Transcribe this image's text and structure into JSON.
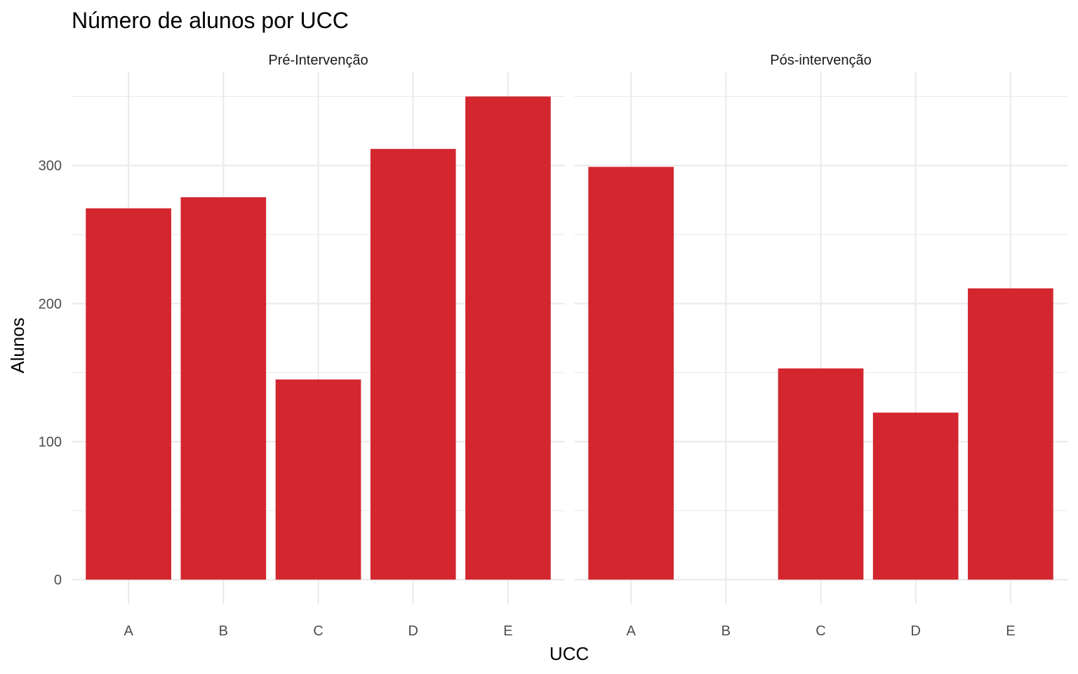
{
  "chart_data": {
    "type": "bar",
    "title": "Número de alunos por UCC",
    "xlabel": "UCC",
    "ylabel": "Alunos",
    "categories": [
      "A",
      "B",
      "C",
      "D",
      "E"
    ],
    "ylim": [
      0,
      350
    ],
    "y_ticks": [
      0,
      100,
      200,
      300
    ],
    "grid": true,
    "legend": "none",
    "bar_color": "#d3262f",
    "panels": [
      {
        "name": "Pré-Intervenção",
        "values": [
          269,
          277,
          145,
          312,
          350
        ]
      },
      {
        "name": "Pós-intervenção",
        "values": [
          299,
          0,
          153,
          121,
          211
        ]
      }
    ]
  }
}
